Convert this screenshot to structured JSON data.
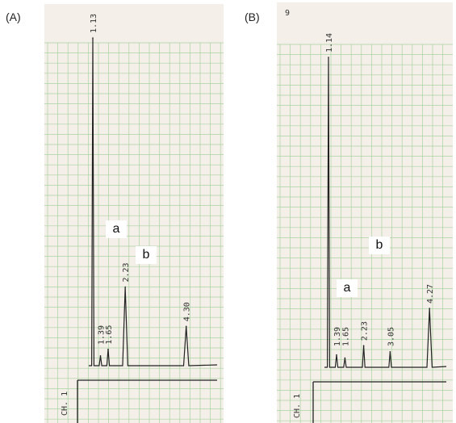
{
  "panels": [
    {
      "label": "(A)",
      "channel": "CH. 1",
      "top_mark": "",
      "callouts": {
        "a": "a",
        "b": "b"
      }
    },
    {
      "label": "(B)",
      "channel": "CH. 1",
      "top_mark": "9",
      "callouts": {
        "a": "a",
        "b": "b"
      }
    }
  ],
  "colors": {
    "grid": "#a9d3a1",
    "paper": "#f4efe8",
    "trace": "#222222",
    "callout_bg": "#ffffff"
  },
  "chart_data": [
    {
      "type": "line",
      "title": "(A)",
      "xlabel": "",
      "ylabel": "",
      "peaks": [
        {
          "rt": 1.13,
          "label": "1.13",
          "height": 100
        },
        {
          "rt": 1.39,
          "label": "1.39",
          "height": 3
        },
        {
          "rt": 1.65,
          "label": "1.65",
          "height": 5
        },
        {
          "rt": 2.23,
          "label": "2.23",
          "height": 24
        },
        {
          "rt": 4.3,
          "label": "4.30",
          "height": 12
        }
      ]
    },
    {
      "type": "line",
      "title": "(B)",
      "xlabel": "",
      "ylabel": "",
      "peaks": [
        {
          "rt": 1.14,
          "label": "1.14",
          "height": 100
        },
        {
          "rt": 1.39,
          "label": "1.39",
          "height": 4
        },
        {
          "rt": 1.65,
          "label": "1.65",
          "height": 3
        },
        {
          "rt": 2.23,
          "label": "2.23",
          "height": 7
        },
        {
          "rt": 3.05,
          "label": "3.05",
          "height": 5
        },
        {
          "rt": 4.27,
          "label": "4.27",
          "height": 19
        }
      ]
    }
  ]
}
